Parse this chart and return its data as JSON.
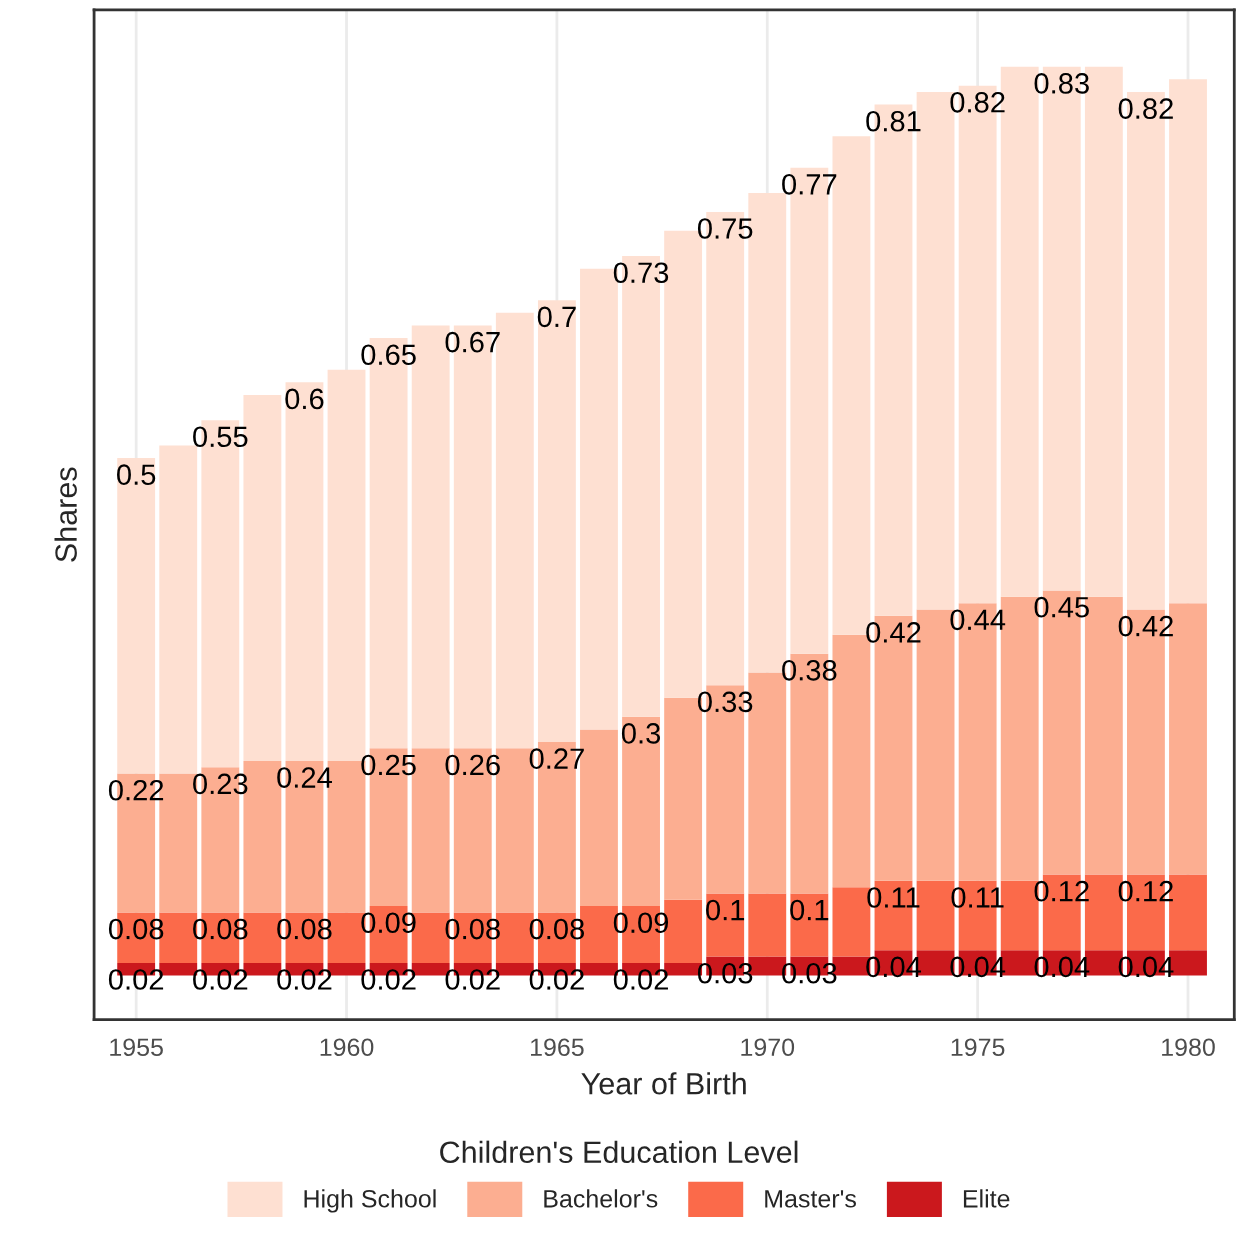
{
  "chart_data": {
    "type": "bar",
    "stacked": true,
    "xlabel": "Year of Birth",
    "ylabel": "Shares",
    "legend_title": "Children's Education Level",
    "legend": "bottom",
    "grid": "x",
    "tick_labels": "x",
    "x": [
      1955,
      1956,
      1957,
      1958,
      1959,
      1960,
      1961,
      1962,
      1963,
      1964,
      1965,
      1966,
      1967,
      1968,
      1969,
      1970,
      1971,
      1972,
      1973,
      1974,
      1975,
      1976,
      1977,
      1978,
      1979,
      1980
    ],
    "xlim": [
      1954.0,
      1981.1
    ],
    "xticks": [
      1955,
      1960,
      1965,
      1970,
      1975,
      1980
    ],
    "ylim": [
      -0.07,
      1.53
    ],
    "series": [
      {
        "name": "Elite",
        "color": "#cb181d",
        "values": [
          0.02,
          0.02,
          0.02,
          0.02,
          0.02,
          0.02,
          0.02,
          0.02,
          0.02,
          0.02,
          0.02,
          0.02,
          0.02,
          0.02,
          0.03,
          0.03,
          0.03,
          0.03,
          0.04,
          0.04,
          0.04,
          0.04,
          0.04,
          0.04,
          0.04,
          0.04
        ],
        "value_labels": [
          "0.02",
          null,
          "0.02",
          null,
          "0.02",
          null,
          "0.02",
          null,
          "0.02",
          null,
          "0.02",
          null,
          "0.02",
          null,
          "0.03",
          null,
          "0.03",
          null,
          "0.04",
          null,
          "0.04",
          null,
          "0.04",
          null,
          "0.04",
          null
        ]
      },
      {
        "name": "Master's",
        "color": "#fb6a4a",
        "values": [
          0.08,
          0.08,
          0.08,
          0.08,
          0.08,
          0.08,
          0.09,
          0.08,
          0.08,
          0.08,
          0.08,
          0.09,
          0.09,
          0.1,
          0.1,
          0.1,
          0.1,
          0.11,
          0.11,
          0.11,
          0.11,
          0.11,
          0.12,
          0.12,
          0.12,
          0.12
        ],
        "value_labels": [
          "0.08",
          null,
          "0.08",
          null,
          "0.08",
          null,
          "0.09",
          null,
          "0.08",
          null,
          "0.08",
          null,
          "0.09",
          null,
          "0.1",
          null,
          "0.1",
          null,
          "0.11",
          null,
          "0.11",
          null,
          "0.12",
          null,
          "0.12",
          null
        ]
      },
      {
        "name": "Bachelor's",
        "color": "#fcae91",
        "values": [
          0.22,
          0.22,
          0.23,
          0.24,
          0.24,
          0.24,
          0.25,
          0.26,
          0.26,
          0.26,
          0.27,
          0.28,
          0.3,
          0.32,
          0.33,
          0.35,
          0.38,
          0.4,
          0.42,
          0.43,
          0.44,
          0.45,
          0.45,
          0.44,
          0.42,
          0.43
        ],
        "value_labels": [
          "0.22",
          null,
          "0.23",
          null,
          "0.24",
          null,
          "0.25",
          null,
          "0.26",
          null,
          "0.27",
          null,
          "0.3",
          null,
          "0.33",
          null,
          "0.38",
          null,
          "0.42",
          null,
          "0.44",
          null,
          "0.45",
          null,
          "0.42",
          null
        ]
      },
      {
        "name": "High School",
        "color": "#fee0d2",
        "values": [
          0.5,
          0.52,
          0.55,
          0.58,
          0.6,
          0.62,
          0.65,
          0.67,
          0.67,
          0.69,
          0.7,
          0.73,
          0.73,
          0.74,
          0.75,
          0.76,
          0.77,
          0.79,
          0.81,
          0.82,
          0.82,
          0.84,
          0.83,
          0.84,
          0.82,
          0.83
        ],
        "value_labels": [
          "0.5",
          null,
          "0.55",
          null,
          "0.6",
          null,
          "0.65",
          null,
          "0.67",
          null,
          "0.7",
          null,
          "0.73",
          null,
          "0.75",
          null,
          "0.77",
          null,
          "0.81",
          null,
          "0.82",
          null,
          "0.83",
          null,
          "0.82",
          null
        ]
      }
    ]
  }
}
